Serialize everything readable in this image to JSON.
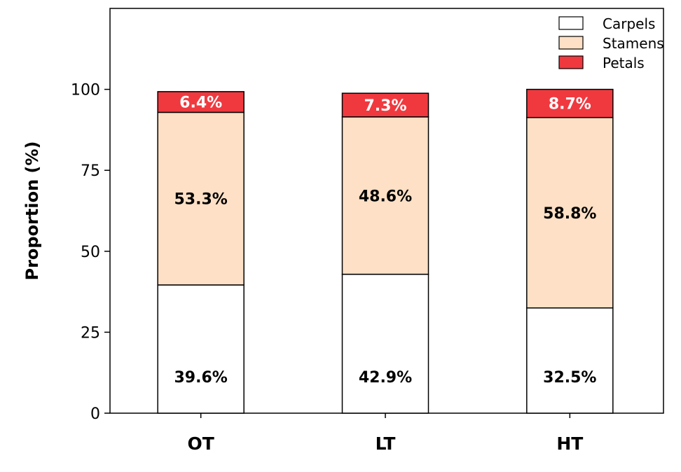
{
  "chart_data": {
    "type": "bar",
    "stacked": true,
    "categories": [
      "OT",
      "LT",
      "HT"
    ],
    "ylabel": "Proportion (%)",
    "ylim": [
      0,
      125
    ],
    "yticks": [
      0,
      25,
      50,
      75,
      100
    ],
    "ytick_labels": [
      "0",
      "25",
      "50",
      "75",
      "100"
    ],
    "grid": false,
    "legend_position": "top-right",
    "series": [
      {
        "name": "Carpels",
        "color": "#ffffff",
        "values": [
          39.6,
          42.9,
          32.5
        ],
        "labels": [
          "39.6%",
          "42.9%",
          "32.5%"
        ],
        "label_color": "#000000"
      },
      {
        "name": "Stamens",
        "color": "#fde0c5",
        "values": [
          53.3,
          48.6,
          58.8
        ],
        "labels": [
          "53.3%",
          "48.6%",
          "58.8%"
        ],
        "label_color": "#000000"
      },
      {
        "name": "Petals",
        "color": "#f0393f",
        "values": [
          6.4,
          7.3,
          8.7
        ],
        "labels": [
          "6.4%",
          "7.3%",
          "8.7%"
        ],
        "label_color": "#ffffff"
      }
    ]
  }
}
